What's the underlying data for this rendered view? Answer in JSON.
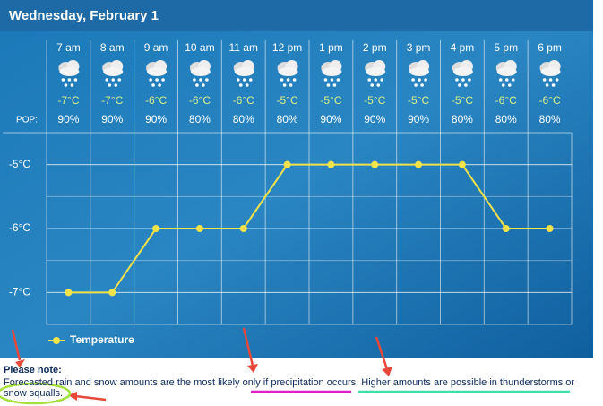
{
  "header": {
    "title": "Wednesday, February 1"
  },
  "pop_label": "POP:",
  "pop": [
    "90%",
    "90%",
    "90%",
    "80%",
    "80%",
    "80%",
    "90%",
    "90%",
    "90%",
    "80%",
    "80%",
    "80%"
  ],
  "chart_data": {
    "type": "line",
    "categories": [
      "7 am",
      "8 am",
      "9 am",
      "10 am",
      "11 am",
      "12 pm",
      "1 pm",
      "2 pm",
      "3 pm",
      "4 pm",
      "5 pm",
      "6 pm"
    ],
    "series": [
      {
        "name": "Temperature",
        "color": "#f3e24a",
        "values": [
          -7,
          -7,
          -6,
          -6,
          -6,
          -5,
          -5,
          -5,
          -5,
          -5,
          -6,
          -6
        ],
        "value_labels": [
          "-7°C",
          "-7°C",
          "-6°C",
          "-6°C",
          "-6°C",
          "-5°C",
          "-5°C",
          "-5°C",
          "-5°C",
          "-5°C",
          "-6°C",
          "-6°C"
        ]
      }
    ],
    "ylim": [
      -7.5,
      -4.5
    ],
    "yticks": [
      {
        "value": -5,
        "label": "-5°C"
      },
      {
        "value": -6,
        "label": "-6°C"
      },
      {
        "value": -7,
        "label": "-7°C"
      }
    ],
    "grid": true
  },
  "note": {
    "title": "Please note:",
    "text": "Forecasted rain and snow amounts are the most likely only if precipitation occurs. Higher amounts are possible in thunderstorms or snow squalls."
  }
}
